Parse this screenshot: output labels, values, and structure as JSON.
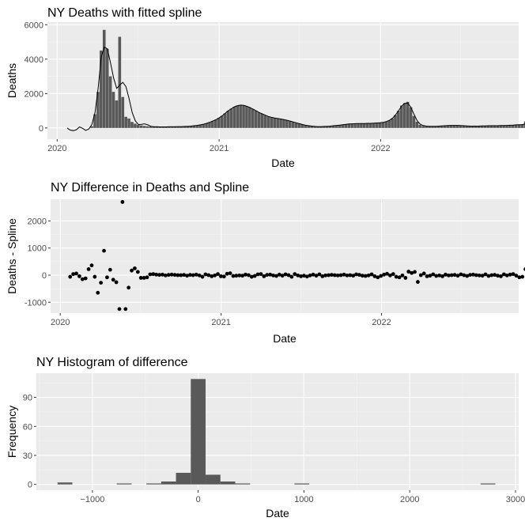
{
  "chart_data": [
    {
      "type": "bar",
      "title": "NY Deaths with fitted spline",
      "xlabel": "Date",
      "ylabel": "Deaths",
      "x_ticks": [
        "2020",
        "2021",
        "2022"
      ],
      "y_ticks": [
        0,
        2000,
        4000,
        6000
      ],
      "xlim": [
        "2019-12-10",
        "2022-11-09"
      ],
      "ylim": [
        -650,
        6150
      ],
      "grid": true,
      "series": [
        {
          "kind": "bar",
          "x_start": "2020-01-20",
          "bin_days": 7,
          "values": [
            0,
            0,
            0,
            0,
            0,
            0,
            0,
            0,
            100,
            800,
            2100,
            4500,
            5700,
            4600,
            3000,
            2100,
            1600,
            5300,
            1800,
            650,
            550,
            350,
            250,
            180,
            150,
            120,
            100,
            90,
            80,
            70,
            60,
            60,
            60,
            70,
            70,
            70,
            80,
            80,
            90,
            100,
            110,
            130,
            150,
            180,
            220,
            270,
            330,
            400,
            480,
            580,
            700,
            850,
            1000,
            1120,
            1230,
            1300,
            1330,
            1310,
            1260,
            1190,
            1100,
            1000,
            900,
            820,
            740,
            670,
            620,
            580,
            550,
            520,
            490,
            450,
            400,
            350,
            300,
            250,
            200,
            160,
            130,
            110,
            90,
            80,
            80,
            90,
            100,
            110,
            130,
            150,
            170,
            190,
            210,
            230,
            240,
            250,
            260,
            260,
            260,
            270,
            270,
            280,
            290,
            300,
            330,
            370,
            440,
            560,
            750,
            1000,
            1300,
            1450,
            1520,
            1200,
            700,
            360,
            180,
            120,
            100,
            90,
            90,
            100,
            110,
            120,
            130,
            140,
            150,
            150,
            150,
            140,
            130,
            120,
            110,
            110,
            110,
            110,
            120,
            120,
            130,
            130,
            130,
            130,
            140,
            140,
            150,
            160,
            170,
            180,
            200,
            200,
            380,
            280,
            150
          ]
        },
        {
          "kind": "line",
          "name": "",
          "description_x_start": "2020-01-20",
          "bin_days": 7,
          "values": [
            0,
            -120,
            -160,
            -100,
            60,
            -20,
            -140,
            -60,
            200,
            900,
            2300,
            4100,
            4700,
            4600,
            3800,
            2900,
            2300,
            2500,
            2650,
            2400,
            1700,
            900,
            420,
            200,
            210,
            240,
            180,
            100,
            70,
            70,
            60,
            60,
            60,
            70,
            70,
            70,
            80,
            80,
            90,
            100,
            110,
            130,
            150,
            180,
            220,
            270,
            330,
            400,
            480,
            580,
            700,
            850,
            1000,
            1120,
            1230,
            1300,
            1330,
            1310,
            1260,
            1190,
            1100,
            1000,
            900,
            820,
            740,
            670,
            620,
            580,
            550,
            520,
            490,
            450,
            400,
            350,
            300,
            250,
            200,
            160,
            130,
            110,
            90,
            80,
            80,
            90,
            100,
            110,
            130,
            150,
            170,
            190,
            210,
            230,
            240,
            250,
            260,
            260,
            260,
            270,
            270,
            280,
            290,
            300,
            330,
            370,
            440,
            560,
            750,
            1000,
            1280,
            1420,
            1450,
            1200,
            800,
            420,
            220,
            140,
            110,
            100,
            100,
            100,
            110,
            120,
            130,
            140,
            150,
            150,
            150,
            140,
            130,
            120,
            110,
            110,
            110,
            110,
            120,
            120,
            130,
            130,
            130,
            130,
            140,
            140,
            150,
            160,
            170,
            180,
            190,
            200,
            230,
            180,
            150
          ]
        }
      ]
    },
    {
      "type": "scatter",
      "title": "NY Difference in Deaths and Spline",
      "xlabel": "Date",
      "ylabel": "Deaths - Spline",
      "x_ticks": [
        "2020",
        "2021",
        "2022"
      ],
      "y_ticks": [
        -1000,
        0,
        1000,
        2000
      ],
      "xlim": [
        "2019-12-10",
        "2022-11-09"
      ],
      "ylim": [
        -1400,
        2800
      ],
      "grid": true,
      "x_start": "2020-01-20",
      "bin_days": 7,
      "values": [
        -60,
        40,
        60,
        -40,
        -150,
        -120,
        220,
        360,
        -60,
        -650,
        -280,
        900,
        -80,
        200,
        -170,
        -260,
        -1250,
        2700,
        -1250,
        -460,
        170,
        250,
        120,
        -100,
        -100,
        -80,
        30,
        40,
        20,
        10,
        20,
        -10,
        10,
        20,
        10,
        0,
        0,
        10,
        -20,
        10,
        0,
        20,
        -10,
        -60,
        30,
        0,
        -40,
        -10,
        40,
        -40,
        -50,
        50,
        70,
        -30,
        -20,
        -10,
        -20,
        20,
        0,
        -60,
        -30,
        30,
        40,
        -40,
        10,
        20,
        -10,
        -30,
        20,
        -20,
        30,
        0,
        -60,
        40,
        -10,
        -40,
        -20,
        -50,
        -10,
        20,
        -20,
        30,
        -40,
        -10,
        0,
        10,
        0,
        -10,
        0,
        20,
        -10,
        0,
        -20,
        30,
        10,
        -20,
        -30,
        -10,
        30,
        -40,
        -80,
        -30,
        20,
        50,
        -10,
        40,
        -60,
        -80,
        -10,
        -100,
        130,
        80,
        120,
        -250,
        0,
        60,
        -40,
        -20,
        30,
        -30,
        -10,
        -40,
        20,
        -10,
        0,
        10,
        -20,
        30,
        0,
        -30,
        10,
        20,
        0,
        -10,
        -20,
        30,
        -30,
        0,
        10,
        -20,
        -40,
        30,
        -10,
        20,
        40,
        -20,
        -80,
        -60,
        220,
        -130
      ]
    },
    {
      "type": "bar",
      "title": "NY Histogram of difference",
      "xlabel": "Date",
      "ylabel": "Frequency",
      "x_ticks": [
        -1000,
        0,
        1000,
        2000,
        3000
      ],
      "y_ticks": [
        0,
        30,
        60,
        90
      ],
      "xlim": [
        -1530,
        3030
      ],
      "ylim": [
        -6,
        115
      ],
      "grid": true,
      "bin_width": 140,
      "bins": [
        {
          "x": -1260,
          "count": 2
        },
        {
          "x": -700,
          "count": 1
        },
        {
          "x": -420,
          "count": 1
        },
        {
          "x": -280,
          "count": 3
        },
        {
          "x": -140,
          "count": 12
        },
        {
          "x": 0,
          "count": 109
        },
        {
          "x": 140,
          "count": 10
        },
        {
          "x": 280,
          "count": 3
        },
        {
          "x": 420,
          "count": 1
        },
        {
          "x": 980,
          "count": 1
        },
        {
          "x": 2740,
          "count": 1
        }
      ]
    }
  ],
  "colors": {
    "panel_bg": "#ebebeb",
    "grid_major": "#ffffff",
    "grid_minor": "#f3f3f3",
    "bar_fill": "#595959",
    "line": "#000000",
    "point": "#000000",
    "axis_text": "#4d4d4d",
    "title_text": "#000000"
  }
}
